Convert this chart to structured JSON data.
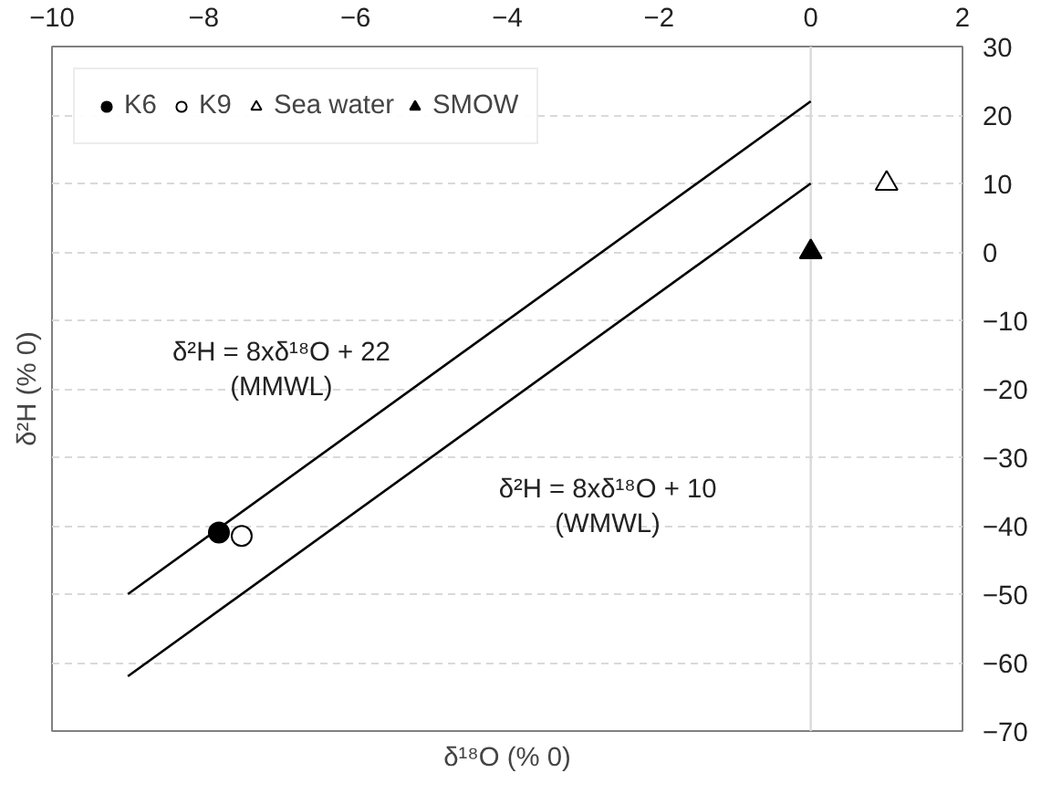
{
  "chart_data": {
    "type": "scatter",
    "xlabel": "δ¹⁸O (% 0)",
    "ylabel": "δ²H (% 0)",
    "xlim": [
      -10,
      2
    ],
    "xticks": [
      -10,
      -8,
      -6,
      -4,
      -2,
      0,
      2
    ],
    "ylim": [
      -70,
      30
    ],
    "yticks": [
      30,
      20,
      10,
      0,
      -10,
      -20,
      -30,
      -40,
      -50,
      -60,
      -70
    ],
    "grid": "y",
    "legend": "top left",
    "series": [
      {
        "type": "line",
        "color": "#000000",
        "x": [
          -9,
          0
        ],
        "values": [
          -50,
          22
        ],
        "marker": "none",
        "line_style": "solid"
      },
      {
        "type": "line",
        "color": "#000000",
        "x": [
          -9,
          0
        ],
        "values": [
          -62,
          10
        ],
        "marker": "none",
        "line_style": "solid"
      },
      {
        "name": "K6",
        "color": "#000000",
        "marker": "circle",
        "x": [
          -7.8
        ],
        "values": [
          -41
        ]
      },
      {
        "name": "K9",
        "color": "#ffffff",
        "marker": "circle",
        "x": [
          -7.5
        ],
        "values": [
          -41.5
        ]
      },
      {
        "name": "Sea water",
        "color": "#ffffff",
        "marker": "triangle",
        "x": [
          1
        ],
        "values": [
          10
        ]
      },
      {
        "name": "SMOW",
        "color": "#000000",
        "marker": "triangle",
        "x": [
          0
        ],
        "values": [
          0
        ]
      }
    ],
    "ref_lines": [
      {
        "axis": "x",
        "value": 0,
        "color": "#d9d9d9"
      }
    ],
    "annotations": [
      "δ²H = 8xδ¹⁸O + 22\n(MMWL)",
      "δ²H = 8xδ¹⁸O + 10\n(WMWL)"
    ]
  }
}
